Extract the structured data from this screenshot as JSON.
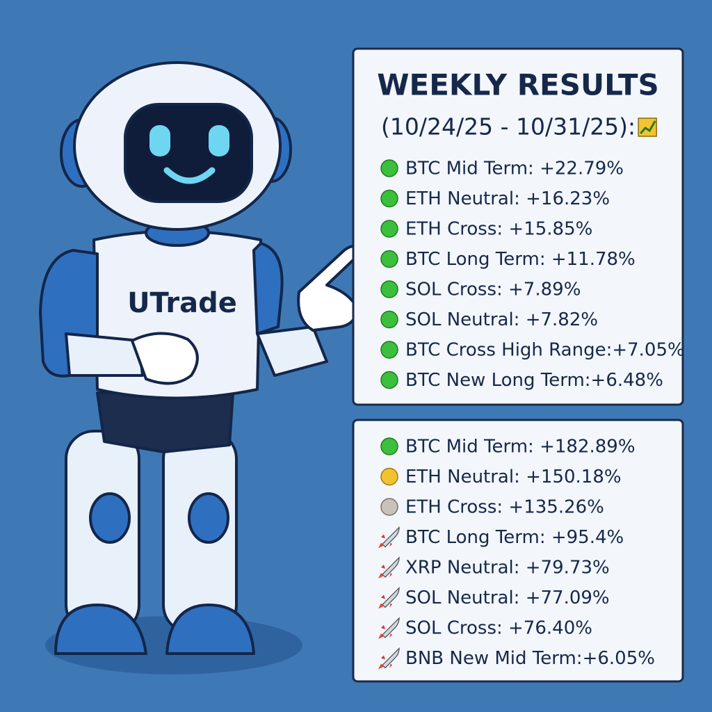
{
  "logo": "UTrade",
  "weekly": {
    "title": "WEEKLY RESULTS",
    "subtitle": "(10/24/25 - 10/31/25):",
    "items": [
      "BTC Mid Term: +22.79%",
      "ETH Neutral: +16.23%",
      "ETH Cross: +15.85%",
      "BTC Long Term: +11.78%",
      "SOL Cross: +7.89%",
      "SOL Neutral: +7.82%",
      "BTC Cross High Range:+7.05%",
      "BTC New Long Term:+6.48%"
    ]
  },
  "overall": {
    "items": [
      "BTC Mid Term: +182.89%",
      "ETH Neutral: +150.18%",
      "ETH Cross: +135.26%",
      "BTC Long Term: +95.4%",
      "XRP Neutral: +79.73%",
      "SOL Neutral: +77.09%",
      "SOL Cross: +76.40%",
      "BNB New Mid Term:+6.05%"
    ]
  }
}
